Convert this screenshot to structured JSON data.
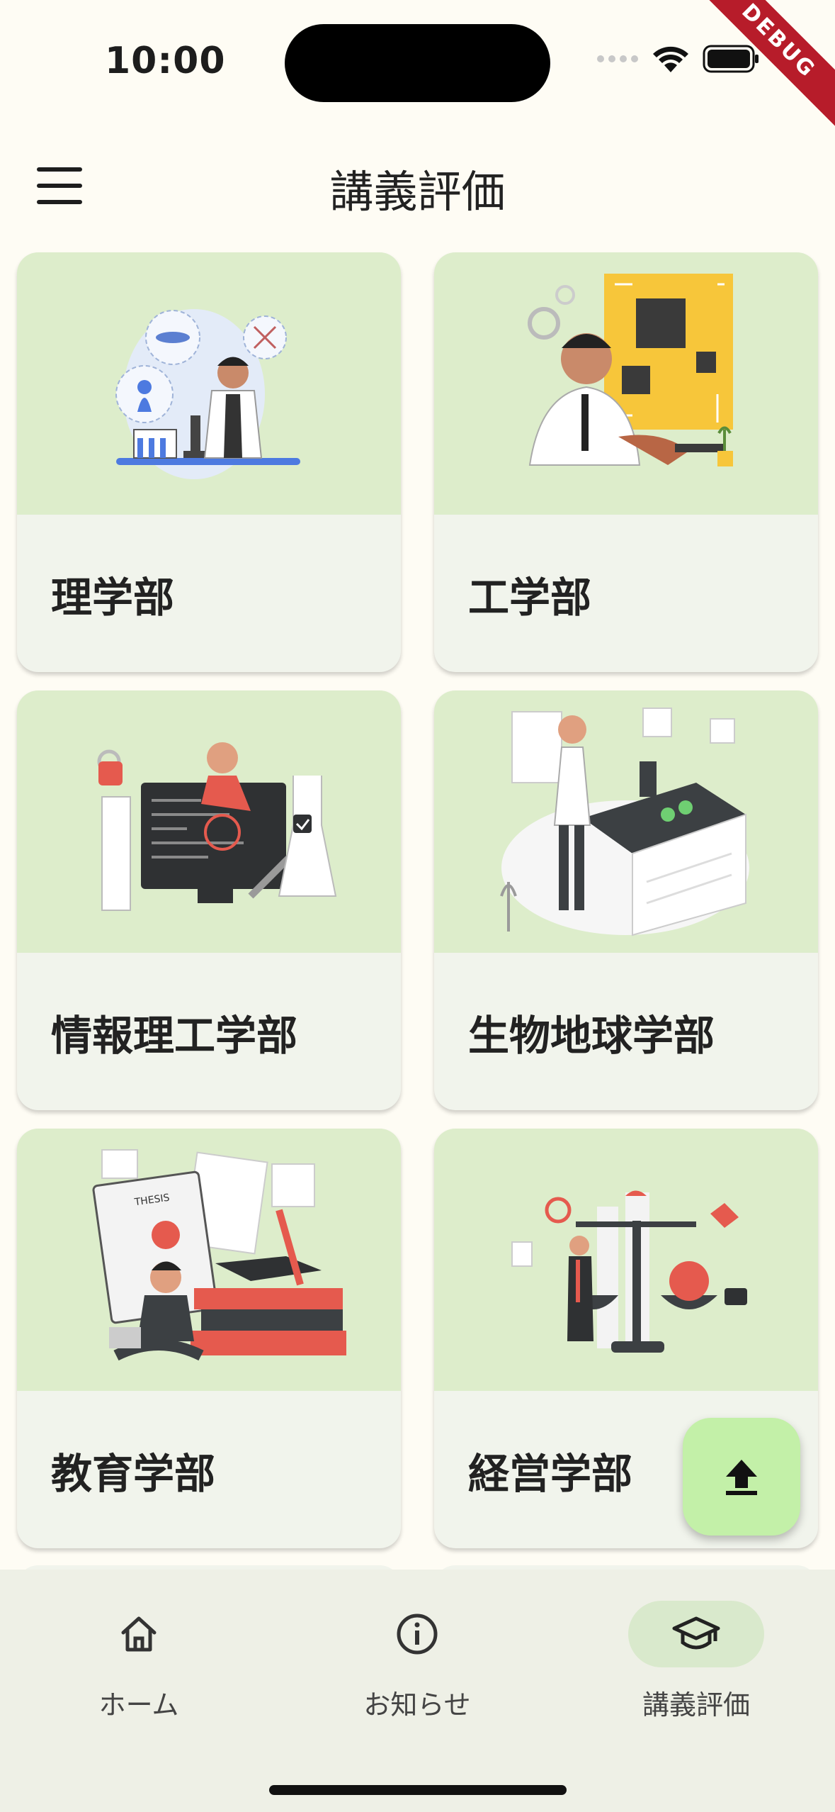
{
  "status_bar": {
    "time": "10:00",
    "debug_badge": "DEBUG"
  },
  "app_bar": {
    "title": "講義評価",
    "menu_icon": "hamburger-menu-icon"
  },
  "faculties": [
    {
      "label": "理学部",
      "illustration": "microscope-scientist"
    },
    {
      "label": "工学部",
      "illustration": "circuit-board-engineer"
    },
    {
      "label": "情報理工学部",
      "illustration": "computer-developer"
    },
    {
      "label": "生物地球学部",
      "illustration": "laboratory-biologist"
    },
    {
      "label": "教育学部",
      "illustration": "thesis-student"
    },
    {
      "label": "経営学部",
      "illustration": "business-scale"
    }
  ],
  "fab": {
    "icon": "upload-icon"
  },
  "bottom_nav": {
    "items": [
      {
        "label": "ホーム",
        "icon": "home-icon",
        "active": false
      },
      {
        "label": "お知らせ",
        "icon": "info-icon",
        "active": false
      },
      {
        "label": "講義評価",
        "icon": "graduation-cap-icon",
        "active": true
      }
    ]
  },
  "colors": {
    "background": "#fefcf4",
    "card_image_bg": "#ddedcb",
    "card_bg": "#f1f4ec",
    "fab_bg": "#c3f0a8",
    "nav_bg": "#eef0e6",
    "nav_active_bg": "#d9e9cc"
  }
}
